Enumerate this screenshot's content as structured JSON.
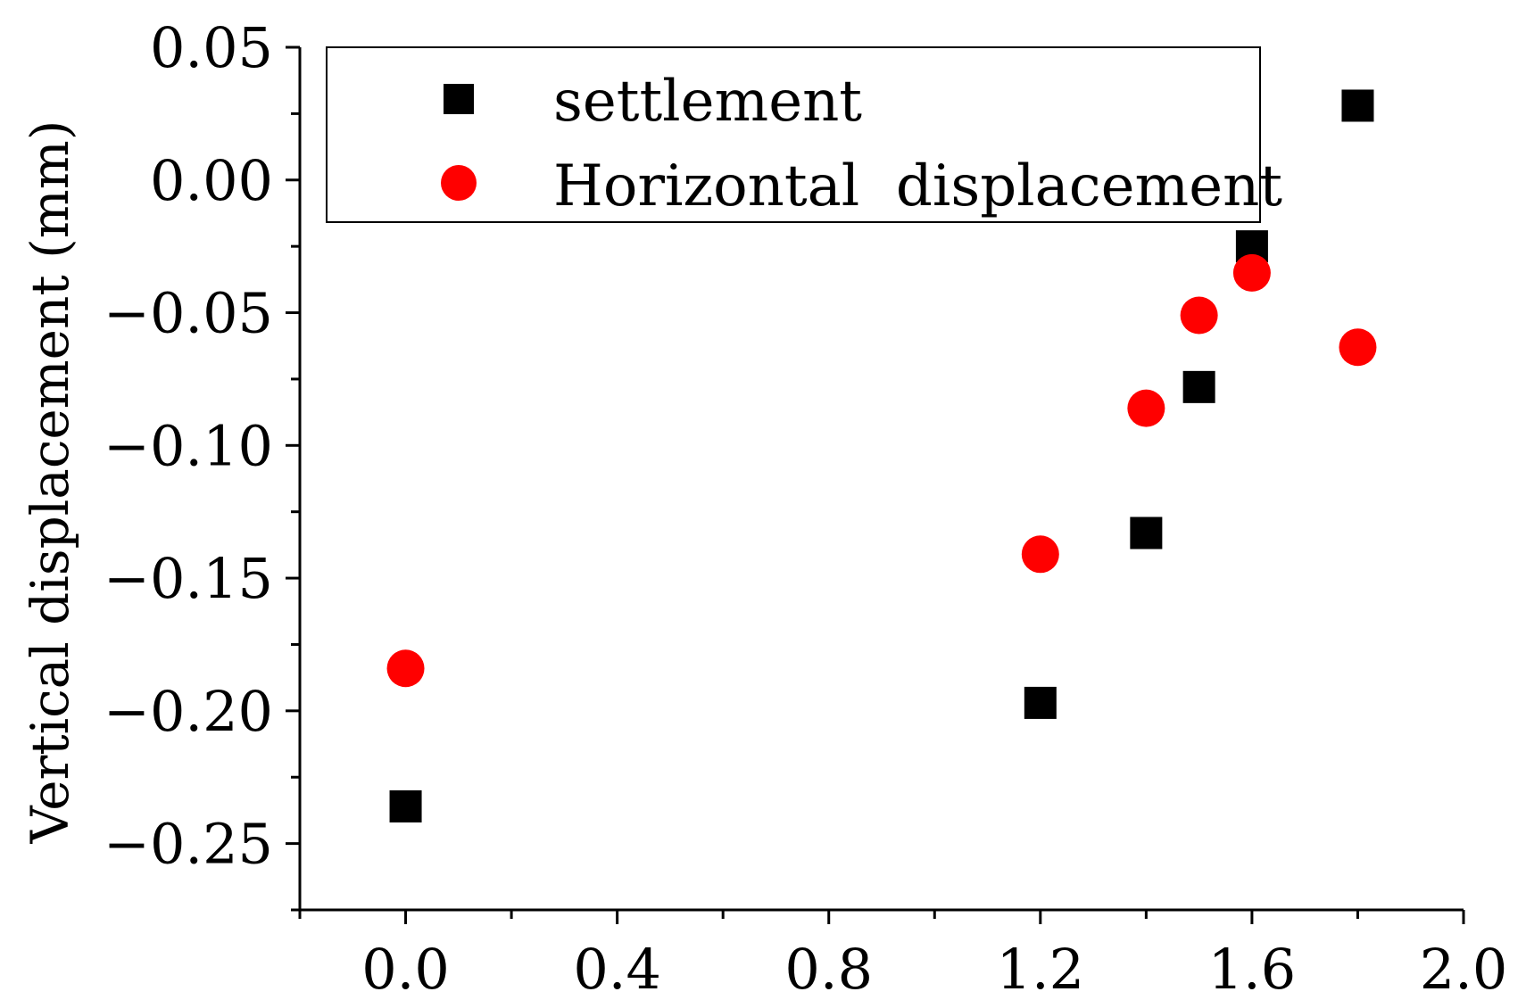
{
  "chart_data": {
    "type": "scatter",
    "title": "",
    "xlabel": "",
    "ylabel": "Vertical displacement (mm)",
    "xlim": [
      -0.2,
      2.0
    ],
    "ylim": [
      -0.275,
      0.05
    ],
    "x_ticks": [
      0.0,
      0.4,
      0.8,
      1.2,
      1.6,
      2.0
    ],
    "x_tick_labels": [
      "0.0",
      "0.4",
      "0.8",
      "1.2",
      "1.6",
      "2.0"
    ],
    "y_ticks": [
      0.05,
      0.0,
      -0.05,
      -0.1,
      -0.15,
      -0.2,
      -0.25
    ],
    "y_tick_labels": [
      "0.05",
      "0.00",
      "−0.05",
      "−0.10",
      "−0.15",
      "−0.20",
      "−0.25"
    ],
    "grid": false,
    "legend_position": "top",
    "series": [
      {
        "name": "settlement",
        "marker": "square",
        "color": "#000000",
        "points": [
          {
            "x": 0.0,
            "y": -0.236
          },
          {
            "x": 1.2,
            "y": -0.197
          },
          {
            "x": 1.4,
            "y": -0.133
          },
          {
            "x": 1.5,
            "y": -0.078
          },
          {
            "x": 1.6,
            "y": -0.025
          },
          {
            "x": 1.8,
            "y": 0.028
          }
        ]
      },
      {
        "name": "Horizontal  displacement",
        "marker": "circle",
        "color": "#ff0000",
        "points": [
          {
            "x": 0.0,
            "y": -0.184
          },
          {
            "x": 1.2,
            "y": -0.141
          },
          {
            "x": 1.4,
            "y": -0.086
          },
          {
            "x": 1.5,
            "y": -0.051
          },
          {
            "x": 1.6,
            "y": -0.035
          },
          {
            "x": 1.8,
            "y": -0.063
          }
        ]
      }
    ]
  }
}
